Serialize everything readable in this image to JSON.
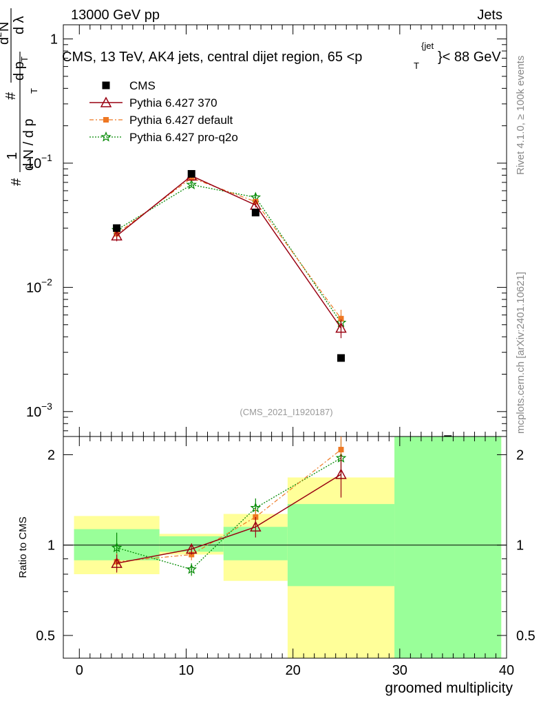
{
  "header": {
    "left": "13000 GeV pp",
    "right": "Jets"
  },
  "title": "CMS, 13 TeV, AK4 jets, central dijet region, 65 < p_T^{jet} < 88 GeV",
  "title_parts": {
    "main": "CMS, 13 TeV, AK4 jets, central dijet region, 65 <p",
    "sub": "T",
    "sup": "{jet",
    "tail": "}< 88 GeV"
  },
  "side_labels": {
    "rivet": "Rivet 4.1.0, ≥ 100k events",
    "mcplots": "mcplots.cern.ch [arXiv:2401.10621]"
  },
  "watermark": "(CMS_2021_I1920187)",
  "colors": {
    "cms": "#000000",
    "p370": "#990011",
    "default": "#ee7722",
    "proq2o": "#008800",
    "band_green": "#99ff99",
    "band_yellow": "#ffff99"
  },
  "chart_data": [
    {
      "type": "scatter",
      "panel": "main",
      "ylabel": "1/N dN/dp_T dλ (normalized distribution)",
      "ylabel_parts": {
        "a": "#",
        "b": "1",
        "c": "d N / d p",
        "d": "T",
        "e": "#",
        "f": "d",
        "g": "2",
        "h": "N",
        "i": "d p",
        "j": "T",
        "k": "d λ"
      },
      "yscale": "log",
      "ylim": [
        0.00063,
        1.3
      ],
      "xlim": [
        -1.5,
        40
      ],
      "yticks": [
        {
          "v": 1,
          "label": "1"
        },
        {
          "v": 0.1,
          "base": "10",
          "exp": "−1"
        },
        {
          "v": 0.01,
          "base": "10",
          "exp": "−2"
        },
        {
          "v": 0.001,
          "base": "10",
          "exp": "−3"
        }
      ],
      "legend": [
        {
          "key": "cms",
          "label": "CMS"
        },
        {
          "key": "p370",
          "label": "Pythia 6.427 370"
        },
        {
          "key": "default",
          "label": "Pythia 6.427 default"
        },
        {
          "key": "proq2o",
          "label": "Pythia 6.427 pro-q2o"
        }
      ],
      "series": [
        {
          "key": "cms",
          "name": "CMS",
          "x": [
            3.5,
            10.5,
            16.5,
            24.5,
            34.5
          ],
          "y": [
            0.03,
            0.082,
            0.04,
            0.0027,
            0.0006
          ]
        },
        {
          "key": "p370",
          "name": "Pythia 6.427 370",
          "x": [
            3.5,
            10.5,
            16.5,
            24.5
          ],
          "y": [
            0.026,
            0.079,
            0.046,
            0.0047
          ],
          "err": [
            0.0025,
            0.003,
            0.002,
            0.0008
          ]
        },
        {
          "key": "default",
          "name": "Pythia 6.427 default",
          "x": [
            3.5,
            10.5,
            16.5,
            24.5
          ],
          "y": [
            0.027,
            0.076,
            0.049,
            0.0056
          ],
          "err": [
            0.0025,
            0.003,
            0.002,
            0.001
          ]
        },
        {
          "key": "proq2o",
          "name": "Pythia 6.427 pro-q2o",
          "x": [
            3.5,
            10.5,
            16.5,
            24.5
          ],
          "y": [
            0.029,
            0.067,
            0.053,
            0.0052
          ],
          "err": [
            0.0025,
            0.003,
            0.004,
            0.0008
          ]
        }
      ]
    },
    {
      "type": "scatter",
      "panel": "ratio",
      "ylabel": "Ratio to CMS",
      "xlabel": "groomed multiplicity",
      "yscale": "log",
      "ylim": [
        0.42,
        2.3
      ],
      "xlim": [
        -1.5,
        40
      ],
      "yticks": [
        {
          "v": 0.5,
          "label": "0.5"
        },
        {
          "v": 1,
          "label": "1"
        },
        {
          "v": 2,
          "label": "2"
        }
      ],
      "xticks": [
        {
          "v": 0,
          "label": "0"
        },
        {
          "v": 10,
          "label": "10"
        },
        {
          "v": 20,
          "label": "20"
        },
        {
          "v": 30,
          "label": "30"
        },
        {
          "v": 40,
          "label": "40"
        }
      ],
      "bands": [
        {
          "x0": -0.5,
          "x1": 7.5,
          "y_lo": 0.8,
          "y_hi": 1.25,
          "g_lo": 0.89,
          "g_hi": 1.13
        },
        {
          "x0": 7.5,
          "x1": 13.5,
          "y_lo": 0.93,
          "y_hi": 1.09,
          "g_lo": 0.95,
          "g_hi": 1.07
        },
        {
          "x0": 13.5,
          "x1": 19.5,
          "y_lo": 0.76,
          "y_hi": 1.27,
          "g_lo": 0.89,
          "g_hi": 1.15
        },
        {
          "x0": 19.5,
          "x1": 29.5,
          "y_lo": 0.42,
          "y_hi": 1.68,
          "g_lo": 0.73,
          "g_hi": 1.37
        },
        {
          "x0": 29.5,
          "x1": 39.5,
          "y_lo": 0.42,
          "y_hi": 2.3,
          "g_lo": 0.42,
          "g_hi": 2.3
        }
      ],
      "series": [
        {
          "key": "p370",
          "name": "Pythia 6.427 370",
          "x": [
            3.5,
            10.5,
            16.5,
            24.5
          ],
          "y": [
            0.87,
            0.97,
            1.15,
            1.72
          ],
          "err": [
            0.06,
            0.04,
            0.09,
            0.28
          ]
        },
        {
          "key": "default",
          "name": "Pythia 6.427 default",
          "x": [
            3.5,
            10.5,
            16.5,
            24.5
          ],
          "y": [
            0.88,
            0.93,
            1.24,
            2.08
          ],
          "err": [
            0.06,
            0.04,
            0.08,
            0.35
          ]
        },
        {
          "key": "proq2o",
          "name": "Pythia 6.427 pro-q2o",
          "x": [
            3.5,
            10.5,
            16.5,
            24.5
          ],
          "y": [
            0.98,
            0.83,
            1.33,
            1.95
          ],
          "err": [
            0.12,
            0.04,
            0.1,
            0.3
          ]
        }
      ]
    }
  ]
}
